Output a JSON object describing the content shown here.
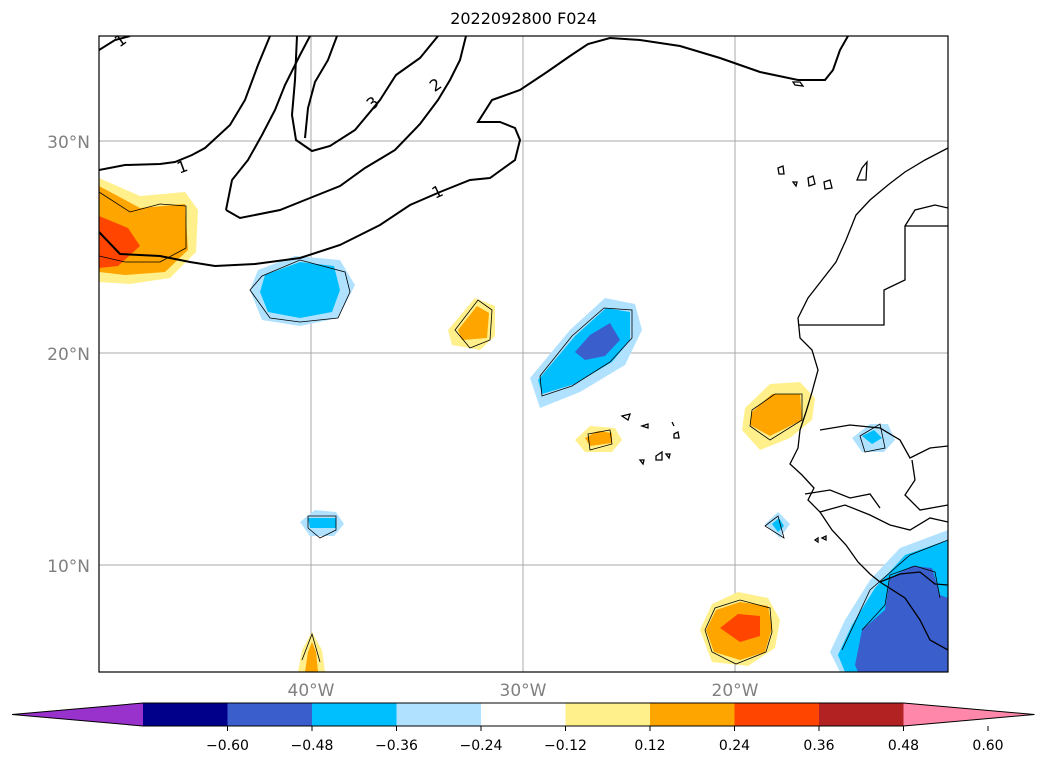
{
  "title": "2022092800 F024",
  "lat_labels": [
    "30°N",
    "20°N",
    "10°N"
  ],
  "lon_labels": [
    "40°W",
    "30°W",
    "20°W"
  ],
  "contour_labels": [
    "1",
    "1",
    "1",
    "2",
    "3"
  ],
  "colorbar": {
    "colors": [
      "#9932cc",
      "#00008b",
      "#3a5fcd",
      "#00bfff",
      "#b0e2ff",
      "#ffffff",
      "#fff08c",
      "#ffa500",
      "#ff4500",
      "#b22222",
      "#ff88aa"
    ],
    "ticks": [
      "−0.60",
      "−0.48",
      "−0.36",
      "−0.24",
      "−0.12",
      "0.12",
      "0.24",
      "0.36",
      "0.48",
      "0.60"
    ]
  }
}
